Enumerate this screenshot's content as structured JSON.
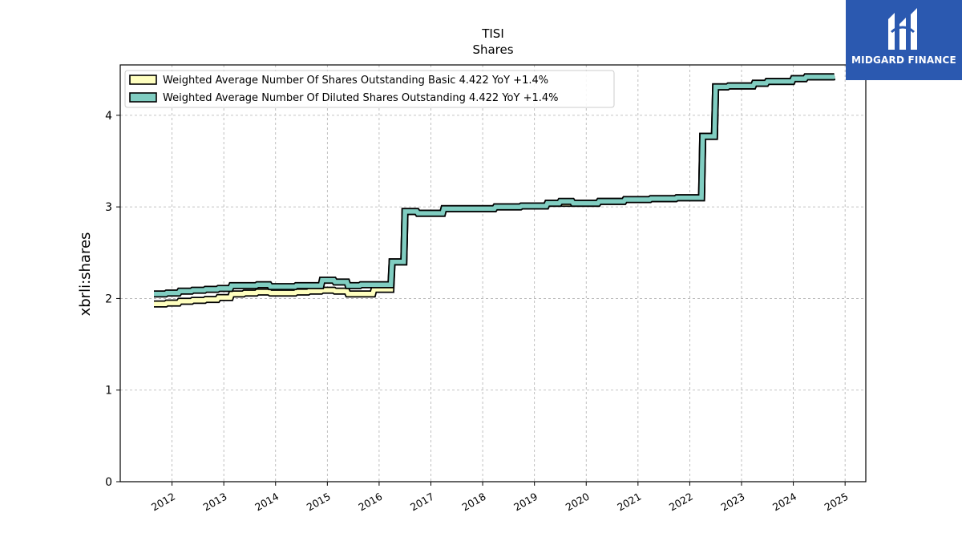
{
  "chart_data": {
    "type": "line",
    "title": "TISI",
    "subtitle": "Shares",
    "xlabel": "",
    "ylabel": "xbrli:shares",
    "ylim": [
      0,
      4.55
    ],
    "yticks": [
      0,
      1,
      2,
      3,
      4
    ],
    "xlim": [
      2011.0,
      2025.4
    ],
    "xticks": [
      "2012",
      "2013",
      "2014",
      "2015",
      "2016",
      "2017",
      "2018",
      "2019",
      "2020",
      "2021",
      "2022",
      "2023",
      "2024",
      "2025"
    ],
    "grid": true,
    "legend_position": "top-left",
    "series": [
      {
        "name": "Weighted Average Number Of Shares Outstanding Basic  4.422 YoY +1.4%",
        "color": "#ffffbf",
        "x": [
          2011.65,
          2011.9,
          2012.15,
          2012.4,
          2012.65,
          2012.9,
          2013.15,
          2013.4,
          2013.65,
          2013.9,
          2014.15,
          2014.4,
          2014.65,
          2014.9,
          2015.15,
          2015.4,
          2015.65,
          2015.9,
          2016.25,
          2016.5,
          2016.75,
          2017.25,
          2017.75,
          2018.25,
          2018.75,
          2019.25,
          2019.5,
          2019.75,
          2020.25,
          2020.75,
          2021.25,
          2021.75,
          2022.25,
          2022.5,
          2022.75,
          2023.25,
          2023.5,
          2023.75,
          2024.0,
          2024.25,
          2024.5,
          2024.8
        ],
        "values": [
          1.94,
          1.95,
          1.97,
          1.98,
          1.99,
          2.01,
          2.05,
          2.06,
          2.07,
          2.06,
          2.06,
          2.07,
          2.08,
          2.09,
          2.08,
          2.05,
          2.05,
          2.1,
          2.4,
          2.95,
          2.93,
          2.98,
          2.98,
          3.0,
          3.01,
          3.04,
          3.04,
          3.04,
          3.06,
          3.08,
          3.09,
          3.1,
          3.77,
          4.31,
          4.32,
          4.35,
          4.37,
          4.37,
          4.4,
          4.42,
          4.42,
          4.422
        ]
      },
      {
        "name": "Weighted Average Number Of Diluted Shares Outstanding  4.422 YoY +1.4%",
        "color": "#80cdc1",
        "x": [
          2011.65,
          2011.9,
          2012.15,
          2012.4,
          2012.65,
          2012.9,
          2013.15,
          2013.4,
          2013.65,
          2013.9,
          2014.15,
          2014.4,
          2014.65,
          2014.9,
          2015.15,
          2015.4,
          2015.65,
          2015.9,
          2016.25,
          2016.5,
          2016.75,
          2017.25,
          2017.75,
          2018.25,
          2018.75,
          2019.25,
          2019.5,
          2019.75,
          2020.25,
          2020.75,
          2021.25,
          2021.75,
          2022.25,
          2022.5,
          2022.75,
          2023.25,
          2023.5,
          2023.75,
          2024.0,
          2024.25,
          2024.5,
          2024.8
        ],
        "values": [
          2.05,
          2.06,
          2.08,
          2.09,
          2.1,
          2.11,
          2.14,
          2.14,
          2.15,
          2.13,
          2.13,
          2.14,
          2.14,
          2.2,
          2.18,
          2.14,
          2.15,
          2.15,
          2.4,
          2.95,
          2.93,
          2.98,
          2.98,
          3.0,
          3.01,
          3.04,
          3.06,
          3.04,
          3.06,
          3.08,
          3.09,
          3.1,
          3.77,
          4.31,
          4.32,
          4.35,
          4.37,
          4.37,
          4.4,
          4.42,
          4.42,
          4.422
        ]
      }
    ]
  },
  "logo": {
    "text": "MIDGARD FINANCE",
    "color": "#2b59b0"
  }
}
